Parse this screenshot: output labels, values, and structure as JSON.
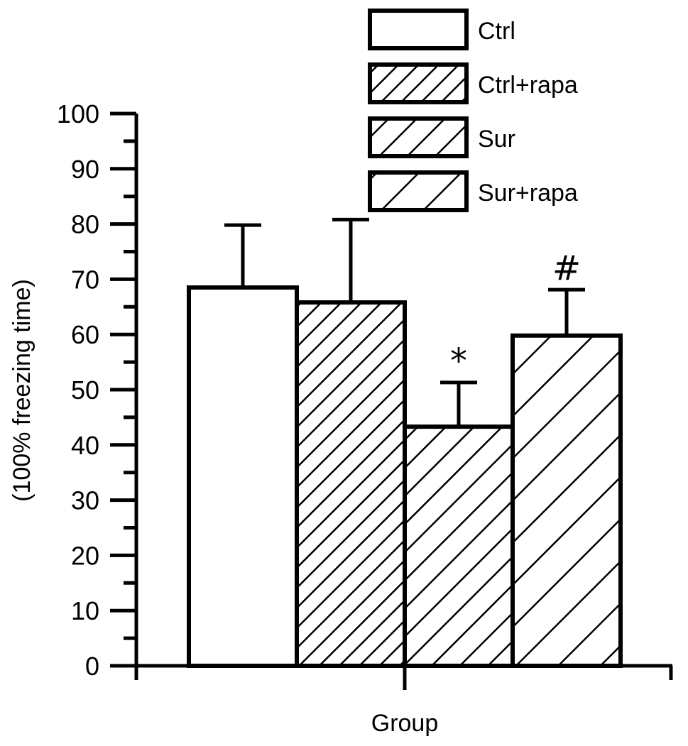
{
  "chart_data": {
    "type": "bar",
    "categories": [
      "Ctrl",
      "Ctrl+rapa",
      "Sur",
      "Sur+rapa"
    ],
    "values": [
      68.5,
      65.8,
      43.3,
      59.8
    ],
    "error_upper": [
      79.8,
      80.8,
      51.3,
      68.1
    ],
    "annotations": [
      "",
      "",
      "*",
      "#"
    ],
    "patterns": [
      "none",
      "hatch-dense",
      "hatch-medium",
      "hatch-wide"
    ],
    "title": "",
    "xlabel": "Group",
    "ylabel": "(100% freezing time)",
    "ylim": [
      0,
      100
    ],
    "yticks": [
      0,
      10,
      20,
      30,
      40,
      50,
      60,
      70,
      80,
      90,
      100
    ],
    "grid": false,
    "legend_position": "top-right",
    "legend": [
      "Ctrl",
      "Ctrl+rapa",
      "Sur",
      "Sur+rapa"
    ],
    "colors": {
      "stroke": "#000000",
      "fill": "#ffffff"
    }
  }
}
